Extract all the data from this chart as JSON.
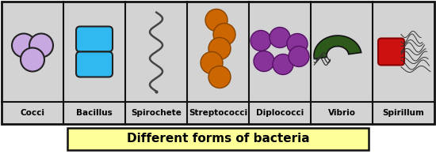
{
  "title": "Different forms of bacteria",
  "title_bg": "#ffff99",
  "title_fontsize": 11,
  "background_color": "#c8c8c8",
  "outer_border_color": "#111111",
  "divider_color": "#111111",
  "panel_bg": "#d3d3d3",
  "labels": [
    "Cocci",
    "Bacillus",
    "Spirochete",
    "Streptococci",
    "Diplococci",
    "Vibrio",
    "Spirillum"
  ],
  "label_fontsize": 7.5,
  "cocci_fill": "#c8a8e0",
  "cocci_edge": "#222222",
  "bacillus_fill": "#30b8f0",
  "bacillus_edge": "#222222",
  "streptococci_fill": "#cc6600",
  "streptococci_edge": "#884400",
  "diplococci_fill": "#883399",
  "diplococci_edge": "#551166",
  "vibrio_fill": "#2d5a1b",
  "vibrio_edge": "#111111",
  "spirillum_body_fill": "#cc1111",
  "spirillum_body_edge": "#880000",
  "spirillum_flagella_color": "#333333",
  "panel_count": 7,
  "fig_width": 5.5,
  "fig_height": 1.95,
  "dpi": 100
}
